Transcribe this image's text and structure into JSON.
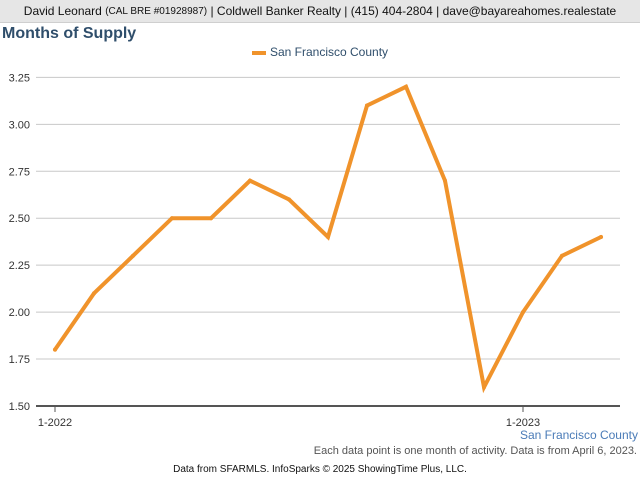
{
  "header": {
    "name": "David Leonard",
    "license": "(CAL BRE #01928987)",
    "rest": "| Coldwell Banker Realty | (415) 404-2804 | dave@bayareahomes.realestate"
  },
  "chart_data": {
    "type": "line",
    "title": "Months of Supply",
    "xlabel": "",
    "ylabel": "",
    "x": [
      "2022-01",
      "2022-02",
      "2022-03",
      "2022-04",
      "2022-05",
      "2022-06",
      "2022-07",
      "2022-08",
      "2022-09",
      "2022-10",
      "2022-11",
      "2022-12",
      "2023-01",
      "2023-02",
      "2023-03"
    ],
    "series": [
      {
        "name": "San Francisco County",
        "color": "#f0932b",
        "values": [
          1.8,
          2.1,
          2.3,
          2.5,
          2.5,
          2.7,
          2.6,
          2.4,
          3.1,
          3.2,
          2.7,
          1.6,
          2.0,
          2.3,
          2.4
        ]
      }
    ],
    "ylim": [
      1.5,
      3.3
    ],
    "yticks": [
      1.5,
      1.75,
      2.0,
      2.25,
      2.5,
      2.75,
      3.0,
      3.25
    ],
    "ytick_labels": [
      "1.50",
      "1.75",
      "2.00",
      "2.25",
      "2.50",
      "2.75",
      "3.00",
      "3.25"
    ],
    "xticks": [
      {
        "index": 0,
        "label": "1-2022"
      },
      {
        "index": 12,
        "label": "1-2023"
      }
    ],
    "grid": true,
    "legend": "top-center",
    "axis_series_label": "San Francisco County"
  },
  "note": "Each data point is one month of activity. Data is from April 6, 2023.",
  "footer": "Data from SFARMLS. InfoSparks © 2025 ShowingTime Plus, LLC."
}
